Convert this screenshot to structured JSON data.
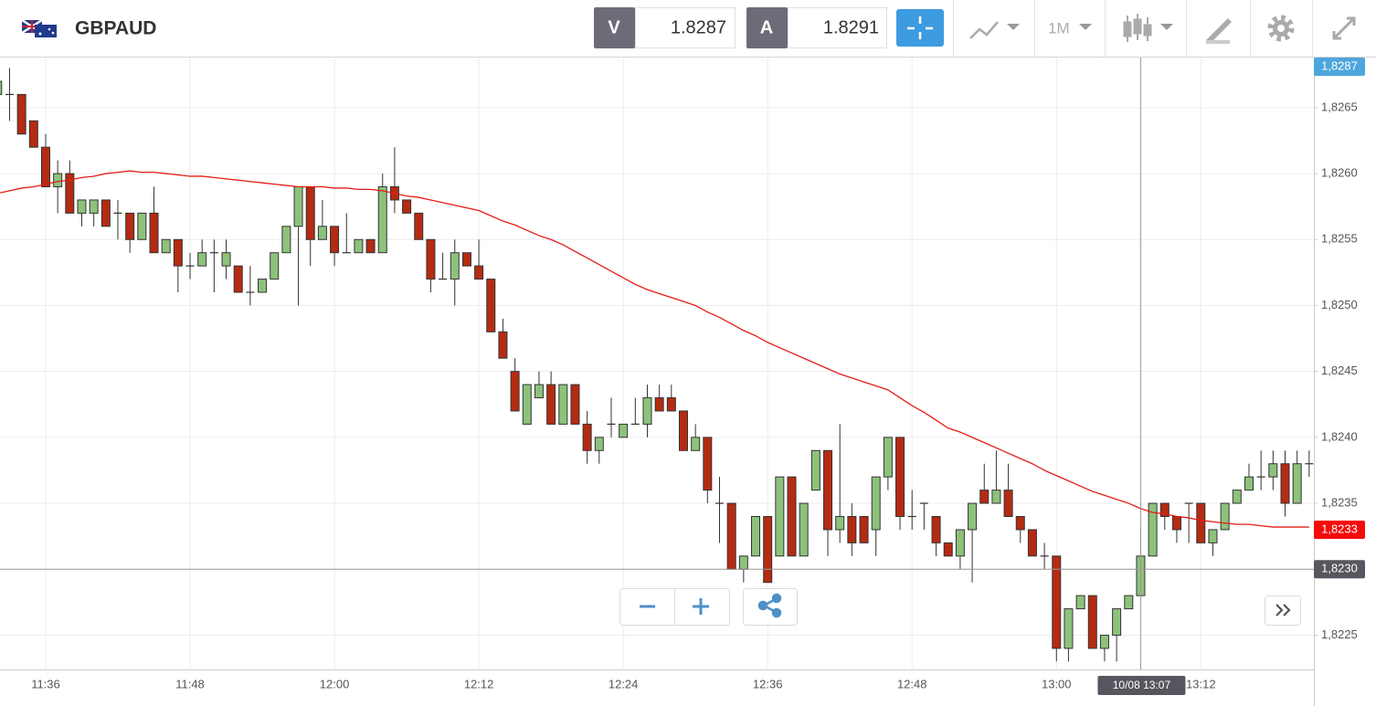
{
  "header": {
    "symbol": "GBPAUD",
    "sell": {
      "label": "V",
      "price": "1.8287"
    },
    "buy": {
      "label": "A",
      "price": "1.8291"
    },
    "timeframe": "1M"
  },
  "chart_data": {
    "type": "candlestick",
    "categories": [
      null,
      null,
      null,
      null,
      "11:36",
      null,
      null,
      null,
      null,
      null,
      null,
      null,
      null,
      null,
      null,
      null,
      "11:48",
      null,
      null,
      null,
      null,
      null,
      null,
      null,
      null,
      null,
      null,
      null,
      "12:00",
      null,
      null,
      null,
      null,
      null,
      null,
      null,
      null,
      null,
      null,
      null,
      "12:12",
      null,
      null,
      null,
      null,
      null,
      null,
      null,
      null,
      null,
      null,
      null,
      "12:24",
      null,
      null,
      null,
      null,
      null,
      null,
      null,
      null,
      null,
      null,
      null,
      "12:36",
      null,
      null,
      null,
      null,
      null,
      null,
      null,
      null,
      null,
      null,
      null,
      "12:48",
      null,
      null,
      null,
      null,
      null,
      null,
      null,
      null,
      null,
      null,
      null,
      "13:00",
      null,
      null,
      null,
      null,
      null,
      null,
      null,
      null,
      null,
      null,
      null,
      "13:12",
      null,
      null,
      null,
      null,
      null,
      null,
      null,
      null,
      null
    ],
    "open": [
      1.8266,
      1.8266,
      1.8266,
      1.8264,
      1.8262,
      1.8259,
      1.826,
      1.8257,
      1.8257,
      1.8258,
      1.8257,
      1.8257,
      1.8255,
      1.8257,
      1.8254,
      1.8255,
      1.8253,
      1.8253,
      1.8254,
      1.8253,
      1.8253,
      1.8251,
      1.8251,
      1.8252,
      1.8254,
      1.8256,
      1.8259,
      1.8255,
      1.8256,
      1.8254,
      1.8254,
      1.8255,
      1.8254,
      1.8259,
      1.8258,
      1.8257,
      1.8255,
      1.8252,
      1.8252,
      1.8254,
      1.8253,
      1.8252,
      1.8248,
      1.8245,
      1.8241,
      1.8243,
      1.8244,
      1.8241,
      1.8244,
      1.8241,
      1.8239,
      1.8241,
      1.824,
      1.8241,
      1.8241,
      1.8243,
      1.8243,
      1.8242,
      1.8239,
      1.824,
      1.8235,
      1.8235,
      1.823,
      1.8231,
      1.8234,
      1.8231,
      1.8237,
      1.8231,
      1.8236,
      1.8239,
      1.8233,
      1.8234,
      1.8234,
      1.8233,
      1.8237,
      1.824,
      1.8234,
      1.8235,
      1.8234,
      1.8232,
      1.8231,
      1.8233,
      1.8236,
      1.8235,
      1.8236,
      1.8234,
      1.8233,
      1.8231,
      1.8231,
      1.8224,
      1.8227,
      1.8228,
      1.8224,
      1.8225,
      1.8227,
      1.8228,
      1.8231,
      1.8235,
      1.8234,
      1.8235,
      1.8235,
      1.8232,
      1.8233,
      1.8235,
      1.8236,
      1.8237,
      1.8237,
      1.8238,
      1.8235,
      1.8238
    ],
    "high": [
      1.8268,
      1.8268,
      1.8266,
      1.8264,
      1.8263,
      1.8261,
      1.8261,
      1.8258,
      1.8258,
      1.8258,
      1.8258,
      1.8257,
      1.8257,
      1.8259,
      1.8255,
      1.8255,
      1.8254,
      1.8255,
      1.8255,
      1.8255,
      1.8253,
      1.8253,
      1.8252,
      1.8254,
      1.8256,
      1.8259,
      1.8259,
      1.8258,
      1.8256,
      1.8257,
      1.8255,
      1.8255,
      1.826,
      1.8262,
      1.8258,
      1.8257,
      1.8255,
      1.8254,
      1.8255,
      1.8254,
      1.8255,
      1.8252,
      1.8249,
      1.8246,
      1.8244,
      1.8245,
      1.8245,
      1.8244,
      1.8244,
      1.8242,
      1.824,
      1.8243,
      1.8241,
      1.8243,
      1.8244,
      1.8244,
      1.8244,
      1.8242,
      1.8241,
      1.824,
      1.8237,
      1.8235,
      1.8231,
      1.8234,
      1.8234,
      1.8237,
      1.8237,
      1.8235,
      1.8239,
      1.8239,
      1.8241,
      1.8235,
      1.8234,
      1.8237,
      1.824,
      1.824,
      1.8236,
      1.8235,
      1.8234,
      1.8232,
      1.8233,
      1.8235,
      1.8238,
      1.8239,
      1.8238,
      1.8234,
      1.8233,
      1.8232,
      1.8231,
      1.8227,
      1.8228,
      1.8228,
      1.8225,
      1.8227,
      1.8228,
      1.8233,
      1.8235,
      1.8235,
      1.8234,
      1.8235,
      1.8235,
      1.8233,
      1.8235,
      1.8236,
      1.8238,
      1.8239,
      1.8239,
      1.8239,
      1.8239,
      1.8239
    ],
    "low": [
      1.8266,
      1.8264,
      1.8263,
      1.8262,
      1.8259,
      1.8257,
      1.8257,
      1.8256,
      1.8256,
      1.8256,
      1.8255,
      1.8254,
      1.8255,
      1.8254,
      1.8254,
      1.8251,
      1.8252,
      1.8253,
      1.8251,
      1.8252,
      1.8251,
      1.825,
      1.8251,
      1.8252,
      1.8254,
      1.825,
      1.8253,
      1.8255,
      1.8253,
      1.8254,
      1.8254,
      1.8254,
      1.8254,
      1.8257,
      1.8257,
      1.8255,
      1.8251,
      1.8252,
      1.825,
      1.8253,
      1.8252,
      1.8248,
      1.8246,
      1.8242,
      1.8241,
      1.8243,
      1.8241,
      1.8241,
      1.8241,
      1.8238,
      1.8238,
      1.824,
      1.824,
      1.8241,
      1.824,
      1.8242,
      1.8242,
      1.8239,
      1.8239,
      1.8235,
      1.8232,
      1.823,
      1.8229,
      1.8231,
      1.8229,
      1.8231,
      1.8231,
      1.8231,
      1.8236,
      1.8231,
      1.8232,
      1.8231,
      1.8232,
      1.8231,
      1.8236,
      1.8233,
      1.8233,
      1.8233,
      1.8231,
      1.8231,
      1.823,
      1.8229,
      1.8235,
      1.8235,
      1.8234,
      1.8232,
      1.8231,
      1.823,
      1.8223,
      1.8223,
      1.8227,
      1.8224,
      1.8223,
      1.8223,
      1.8227,
      1.8228,
      1.8231,
      1.8233,
      1.8232,
      1.8232,
      1.8232,
      1.8231,
      1.8233,
      1.8235,
      1.8236,
      1.8236,
      1.8236,
      1.8234,
      1.8235,
      1.8237
    ],
    "close": [
      1.8267,
      1.8266,
      1.8263,
      1.8262,
      1.8259,
      1.826,
      1.8257,
      1.8258,
      1.8258,
      1.8256,
      1.8257,
      1.8255,
      1.8257,
      1.8254,
      1.8255,
      1.8253,
      1.8253,
      1.8254,
      1.8254,
      1.8254,
      1.8251,
      1.8251,
      1.8252,
      1.8254,
      1.8256,
      1.8259,
      1.8255,
      1.8256,
      1.8254,
      1.8254,
      1.8255,
      1.8254,
      1.8259,
      1.8258,
      1.8257,
      1.8255,
      1.8252,
      1.8252,
      1.8254,
      1.8253,
      1.8252,
      1.8248,
      1.8246,
      1.8242,
      1.8244,
      1.8244,
      1.8241,
      1.8244,
      1.8241,
      1.8239,
      1.824,
      1.8241,
      1.8241,
      1.8241,
      1.8243,
      1.8242,
      1.8242,
      1.8239,
      1.824,
      1.8236,
      1.8235,
      1.823,
      1.8231,
      1.8234,
      1.8229,
      1.8237,
      1.8231,
      1.8235,
      1.8239,
      1.8233,
      1.8234,
      1.8232,
      1.8232,
      1.8237,
      1.824,
      1.8234,
      1.8234,
      1.8235,
      1.8232,
      1.8231,
      1.8233,
      1.8235,
      1.8235,
      1.8236,
      1.8234,
      1.8233,
      1.8231,
      1.8231,
      1.8224,
      1.8227,
      1.8228,
      1.8224,
      1.8225,
      1.8227,
      1.8228,
      1.8231,
      1.8235,
      1.8234,
      1.8233,
      1.8235,
      1.8232,
      1.8233,
      1.8235,
      1.8236,
      1.8237,
      1.8237,
      1.8238,
      1.8235,
      1.8238,
      1.8238
    ],
    "up_color": "#8dc27b",
    "down_color": "#b52b12",
    "ma": {
      "color": "#e51c14",
      "values": [
        1.82585,
        1.82587,
        1.82589,
        1.8259,
        1.82592,
        1.82594,
        1.82595,
        1.82597,
        1.82598,
        1.826,
        1.82601,
        1.82602,
        1.82601,
        1.82601,
        1.826,
        1.82599,
        1.82598,
        1.82598,
        1.82597,
        1.82596,
        1.82595,
        1.82594,
        1.82593,
        1.82592,
        1.82591,
        1.8259,
        1.8259,
        1.8259,
        1.82589,
        1.82589,
        1.82588,
        1.82588,
        1.82587,
        1.82585,
        1.82583,
        1.82582,
        1.8258,
        1.82578,
        1.82576,
        1.82574,
        1.82572,
        1.82568,
        1.82564,
        1.82561,
        1.82557,
        1.82553,
        1.8255,
        1.82546,
        1.82541,
        1.82536,
        1.82531,
        1.82526,
        1.82521,
        1.82516,
        1.82512,
        1.82509,
        1.82506,
        1.82503,
        1.825,
        1.82495,
        1.82491,
        1.82486,
        1.82481,
        1.82477,
        1.82472,
        1.82468,
        1.82464,
        1.8246,
        1.82456,
        1.82452,
        1.82448,
        1.82445,
        1.82442,
        1.82439,
        1.82436,
        1.8243,
        1.82424,
        1.82419,
        1.82413,
        1.82407,
        1.82404,
        1.824,
        1.82396,
        1.82392,
        1.82388,
        1.82384,
        1.8238,
        1.82375,
        1.82371,
        1.82367,
        1.82363,
        1.82359,
        1.82356,
        1.82353,
        1.8235,
        1.82346,
        1.82343,
        1.82342,
        1.8234,
        1.82339,
        1.82337,
        1.82336,
        1.82335,
        1.82334,
        1.82334,
        1.82333,
        1.82332,
        1.82332,
        1.82332,
        1.82332
      ]
    },
    "ylim": [
      1.82224,
      1.82688
    ],
    "yticks": [
      {
        "value": 1.8225,
        "label": "1,8225"
      },
      {
        "value": 1.823,
        "label": "1,8230"
      },
      {
        "value": 1.8235,
        "label": "1,8235"
      },
      {
        "value": 1.824,
        "label": "1,8240"
      },
      {
        "value": 1.8245,
        "label": "1,8245"
      },
      {
        "value": 1.825,
        "label": "1,8250"
      },
      {
        "value": 1.8255,
        "label": "1,8255"
      },
      {
        "value": 1.826,
        "label": "1,8260"
      },
      {
        "value": 1.8265,
        "label": "1,8265"
      }
    ],
    "grid": true,
    "crosshair": {
      "index": 95,
      "label": "10/08 13:07",
      "value": 1.823,
      "value_label": "1,8230"
    },
    "price_tags": [
      {
        "value": 1.8287,
        "label": "1,8287",
        "color": "#4da6dc"
      },
      {
        "value": 1.8233,
        "label": "1,8233",
        "color": "#f50a0a"
      }
    ]
  }
}
